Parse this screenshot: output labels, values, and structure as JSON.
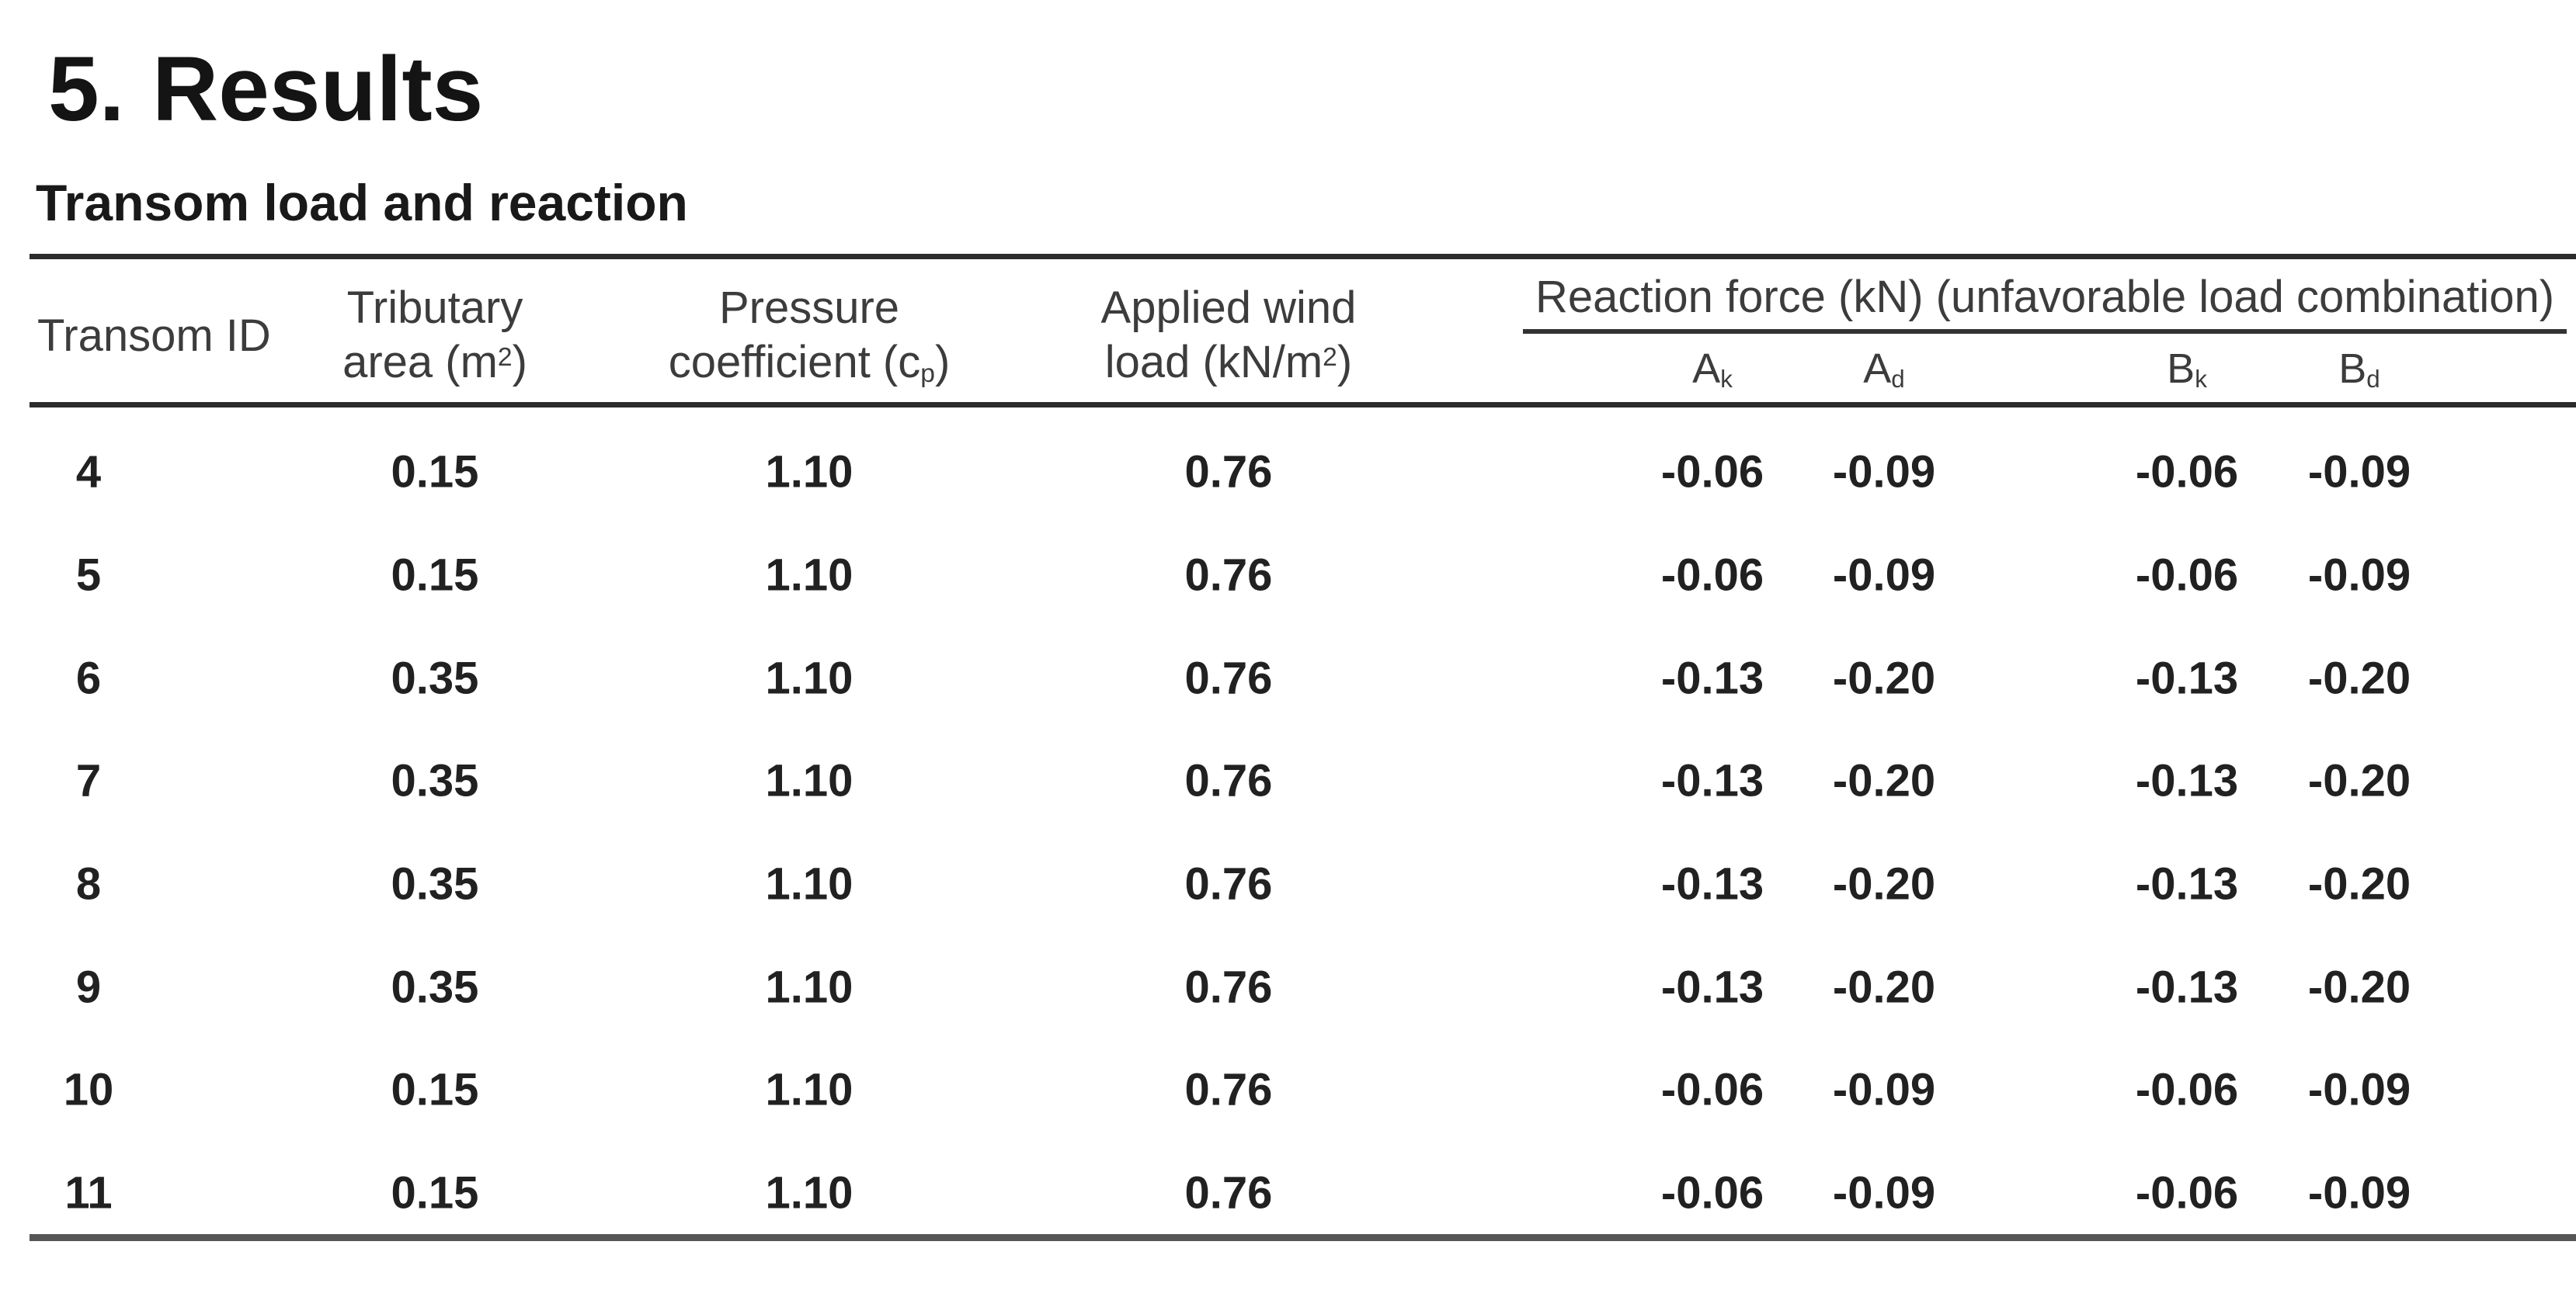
{
  "heading": {
    "number": "5.",
    "title": "Results",
    "subtitle": "Transom load and reaction"
  },
  "table": {
    "headers": {
      "transom_id": "Transom ID",
      "tributary": {
        "line1": "Tributary",
        "line2_pre": "area (m",
        "sup": "2",
        "line2_post": ")"
      },
      "pressure": {
        "line1": "Pressure",
        "line2_pre": "coefficient (c",
        "sub": "p",
        "line2_post": ")"
      },
      "wind": {
        "line1": "Applied wind",
        "line2_pre": "load (kN/m",
        "sup": "2",
        "line2_post": ")"
      },
      "reaction_group": "Reaction force (kN) (unfavorable load combination)",
      "subcols": [
        {
          "base": "A",
          "sub": "k"
        },
        {
          "base": "A",
          "sub": "d"
        },
        {
          "base": "B",
          "sub": "k"
        },
        {
          "base": "B",
          "sub": "d"
        }
      ]
    },
    "rows": [
      {
        "cells": [
          "4",
          "0.15",
          "1.10",
          "0.76",
          "-0.06",
          "-0.09",
          "-0.06",
          "-0.09"
        ]
      },
      {
        "cells": [
          "5",
          "0.15",
          "1.10",
          "0.76",
          "-0.06",
          "-0.09",
          "-0.06",
          "-0.09"
        ]
      },
      {
        "cells": [
          "6",
          "0.35",
          "1.10",
          "0.76",
          "-0.13",
          "-0.20",
          "-0.13",
          "-0.20"
        ]
      },
      {
        "cells": [
          "7",
          "0.35",
          "1.10",
          "0.76",
          "-0.13",
          "-0.20",
          "-0.13",
          "-0.20"
        ]
      },
      {
        "cells": [
          "8",
          "0.35",
          "1.10",
          "0.76",
          "-0.13",
          "-0.20",
          "-0.13",
          "-0.20"
        ]
      },
      {
        "cells": [
          "9",
          "0.35",
          "1.10",
          "0.76",
          "-0.13",
          "-0.20",
          "-0.13",
          "-0.20"
        ]
      },
      {
        "cells": [
          "10",
          "0.15",
          "1.10",
          "0.76",
          "-0.06",
          "-0.09",
          "-0.06",
          "-0.09"
        ]
      },
      {
        "cells": [
          "11",
          "0.15",
          "1.10",
          "0.76",
          "-0.06",
          "-0.09",
          "-0.06",
          "-0.09"
        ]
      }
    ]
  }
}
